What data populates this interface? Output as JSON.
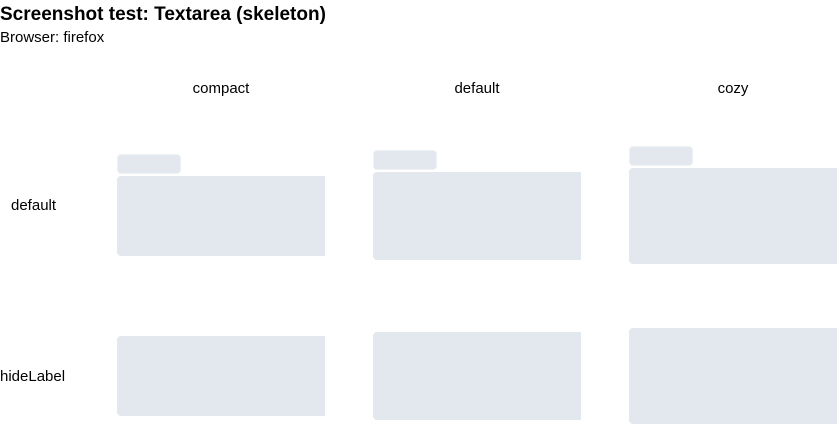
{
  "page": {
    "title": "Screenshot test: Textarea (skeleton)",
    "browser_label": "Browser: firefox"
  },
  "columns": [
    "compact",
    "default",
    "cozy"
  ],
  "rows": [
    "default",
    "hideLabel"
  ],
  "colors": {
    "skeleton": "#e3e8ee",
    "skeleton_border": "#eef1f5"
  }
}
